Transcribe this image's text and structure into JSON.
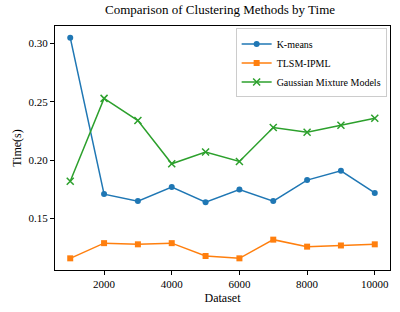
{
  "chart_data": {
    "type": "line",
    "title": "Comparison of Clustering Methods by Time",
    "x_label": "Dataset",
    "y_label": "Time(s)",
    "x": [
      1000,
      2000,
      3000,
      4000,
      5000,
      6000,
      7000,
      8000,
      9000,
      10000
    ],
    "series": [
      {
        "name": "K-means",
        "color": "#1f77b4",
        "marker": "circle",
        "values": [
          0.305,
          0.171,
          0.165,
          0.177,
          0.164,
          0.175,
          0.165,
          0.183,
          0.191,
          0.172
        ]
      },
      {
        "name": "TLSM-IPML",
        "color": "#ff7f0e",
        "marker": "square",
        "values": [
          0.116,
          0.129,
          0.128,
          0.129,
          0.118,
          0.116,
          0.132,
          0.126,
          0.127,
          0.128
        ]
      },
      {
        "name": "Gaussian Mixture Models",
        "color": "#2ca02c",
        "marker": "x",
        "values": [
          0.182,
          0.253,
          0.234,
          0.197,
          0.207,
          0.199,
          0.228,
          0.224,
          0.23,
          0.236
        ]
      }
    ],
    "xlim": [
      550,
      10450
    ],
    "xticks": [
      2000,
      4000,
      6000,
      8000,
      10000
    ],
    "ylim": [
      0.106,
      0.315
    ],
    "yticks": [
      0.15,
      {
        "value": 0.2,
        "label": "0.20"
      },
      0.25,
      {
        "value": 0.3,
        "label": "0.30"
      }
    ],
    "legend": "upper right",
    "grid": false
  }
}
